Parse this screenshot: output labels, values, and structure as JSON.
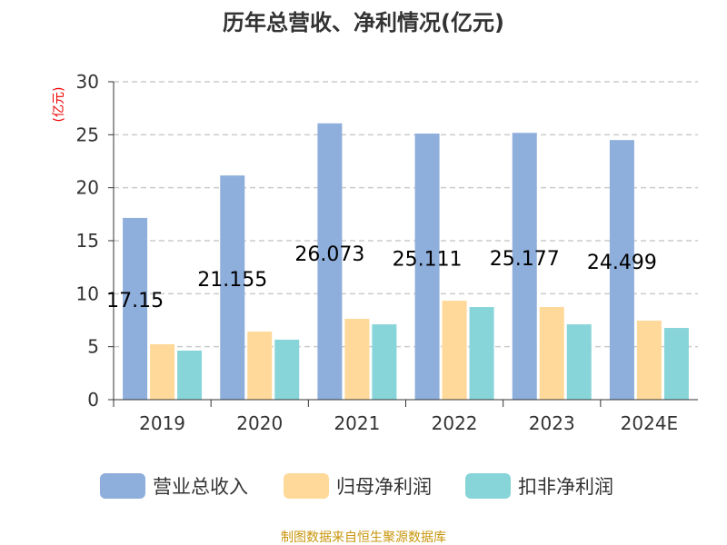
{
  "chart_data": {
    "type": "bar",
    "title": "历年总营收、净利情况(亿元)",
    "ylabel": "(亿元)",
    "xlabel": "",
    "ylim": [
      0,
      30
    ],
    "yticks": [
      0,
      5,
      10,
      15,
      20,
      25,
      30
    ],
    "grid": true,
    "legend_position": "bottom",
    "categories": [
      "2019",
      "2020",
      "2021",
      "2022",
      "2023",
      "2024E"
    ],
    "series": [
      {
        "name": "营业总收入",
        "color": "#8eaedb",
        "values": [
          17.15,
          21.155,
          26.073,
          25.111,
          25.177,
          24.499
        ],
        "labels": [
          "17.15",
          "21.155",
          "26.073",
          "25.111",
          "25.177",
          "24.499"
        ]
      },
      {
        "name": "归母净利润",
        "color": "#ffd999",
        "values": [
          5.23,
          6.43,
          7.63,
          9.34,
          8.74,
          7.46
        ]
      },
      {
        "name": "扣非净利润",
        "color": "#88d5d9",
        "values": [
          4.63,
          5.66,
          7.11,
          8.74,
          7.11,
          6.77
        ]
      }
    ],
    "source": "制图数据来自恒生聚源数据库"
  }
}
